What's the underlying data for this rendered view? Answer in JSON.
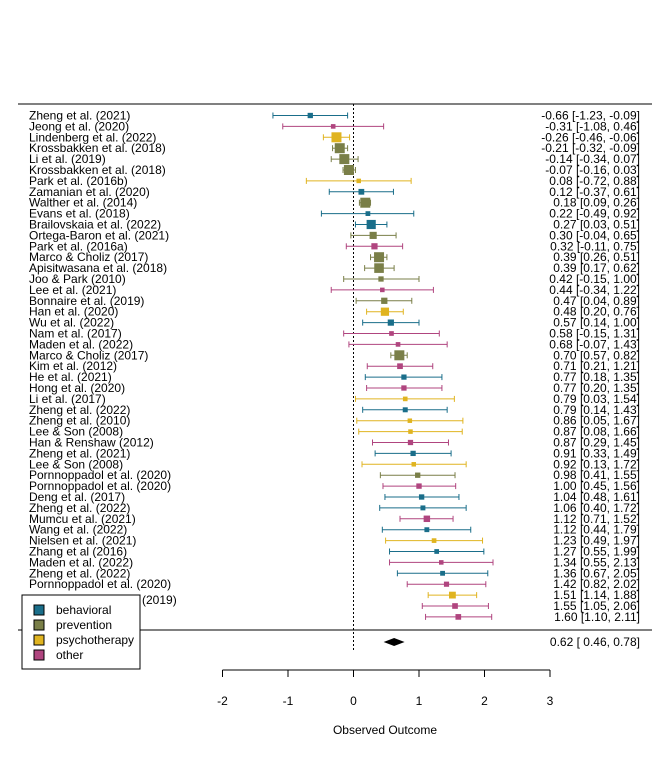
{
  "chart_data": {
    "type": "forest",
    "xlabel": "Observed Outcome",
    "xlim": [
      -2,
      3
    ],
    "xticks": [
      -2,
      -1,
      0,
      1,
      2,
      3
    ],
    "xtick_labels": [
      "-2",
      "-1",
      "0",
      "1",
      "2",
      "3"
    ],
    "reference_line": 0,
    "legend": {
      "placement": "bottom-left",
      "entries": [
        {
          "label": "behavioral",
          "color": "#1a6e8a"
        },
        {
          "label": "prevention",
          "color": "#7a7f48"
        },
        {
          "label": "psychotherapy",
          "color": "#e0b420"
        },
        {
          "label": "other",
          "color": "#b0457f"
        }
      ]
    },
    "studies": [
      {
        "label": "Zheng et al. (2021)",
        "est": -0.66,
        "lo": -1.23,
        "hi": -0.09,
        "text": "-0.66 [-1.23, -0.09]",
        "group": "behavioral"
      },
      {
        "label": "Jeong et al. (2020)",
        "est": -0.31,
        "lo": -1.08,
        "hi": 0.46,
        "text": "-0.31 [-1.08, 0.46]",
        "group": "other"
      },
      {
        "label": "Lindenberg et al. (2022)",
        "est": -0.26,
        "lo": -0.46,
        "hi": -0.06,
        "text": "-0.26 [-0.46, -0.06]",
        "group": "psychotherapy"
      },
      {
        "label": "Krossbakken et al. (2018)",
        "est": -0.21,
        "lo": -0.32,
        "hi": -0.09,
        "text": "-0.21 [-0.32, -0.09]",
        "group": "prevention"
      },
      {
        "label": "Li et al. (2019)",
        "est": -0.14,
        "lo": -0.34,
        "hi": 0.07,
        "text": "-0.14 [-0.34, 0.07]",
        "group": "prevention"
      },
      {
        "label": "Krossbakken et al. (2018)",
        "est": -0.07,
        "lo": -0.16,
        "hi": 0.03,
        "text": "-0.07 [-0.16, 0.03]",
        "group": "prevention"
      },
      {
        "label": "Park et al. (2016b)",
        "est": 0.08,
        "lo": -0.72,
        "hi": 0.88,
        "text": "0.08 [-0.72, 0.88]",
        "group": "psychotherapy"
      },
      {
        "label": "Zamanian et al. (2020)",
        "est": 0.12,
        "lo": -0.37,
        "hi": 0.61,
        "text": "0.12 [-0.37, 0.61]",
        "group": "behavioral"
      },
      {
        "label": "Walther et al. (2014)",
        "est": 0.18,
        "lo": 0.09,
        "hi": 0.26,
        "text": "0.18 [0.09, 0.26]",
        "group": "prevention"
      },
      {
        "label": "Evans et al. (2018)",
        "est": 0.22,
        "lo": -0.49,
        "hi": 0.92,
        "text": "0.22 [-0.49, 0.92]",
        "group": "behavioral"
      },
      {
        "label": "Brailovskaia et al. (2022)",
        "est": 0.27,
        "lo": 0.03,
        "hi": 0.51,
        "text": "0.27 [0.03, 0.51]",
        "group": "behavioral"
      },
      {
        "label": "Ortega-Baron et al. (2021)",
        "est": 0.3,
        "lo": -0.04,
        "hi": 0.65,
        "text": "0.30 [-0.04, 0.65]",
        "group": "prevention"
      },
      {
        "label": "Park et al. (2016a)",
        "est": 0.32,
        "lo": -0.11,
        "hi": 0.75,
        "text": "0.32 [-0.11, 0.75]",
        "group": "other"
      },
      {
        "label": "Marco & Choliz (2017)",
        "est": 0.39,
        "lo": 0.26,
        "hi": 0.51,
        "text": "0.39 [0.26, 0.51]",
        "group": "prevention"
      },
      {
        "label": "Apisitwasana et al. (2018)",
        "est": 0.39,
        "lo": 0.17,
        "hi": 0.62,
        "text": "0.39 [0.17, 0.62]",
        "group": "prevention"
      },
      {
        "label": "Joo & Park (2010)",
        "est": 0.42,
        "lo": -0.15,
        "hi": 1.0,
        "text": "0.42 [-0.15, 1.00]",
        "group": "prevention"
      },
      {
        "label": "Lee et al. (2021)",
        "est": 0.44,
        "lo": -0.34,
        "hi": 1.22,
        "text": "0.44 [-0.34, 1.22]",
        "group": "other"
      },
      {
        "label": "Bonnaire et al. (2019)",
        "est": 0.47,
        "lo": 0.04,
        "hi": 0.89,
        "text": "0.47 [0.04, 0.89]",
        "group": "prevention"
      },
      {
        "label": "Han et al. (2020)",
        "est": 0.48,
        "lo": 0.2,
        "hi": 0.76,
        "text": "0.48 [0.20, 0.76]",
        "group": "psychotherapy"
      },
      {
        "label": "Wu et al. (2022)",
        "est": 0.57,
        "lo": 0.14,
        "hi": 1.0,
        "text": "0.57 [0.14, 1.00]",
        "group": "behavioral"
      },
      {
        "label": "Nam et al. (2017)",
        "est": 0.58,
        "lo": -0.15,
        "hi": 1.31,
        "text": "0.58 [-0.15, 1.31]",
        "group": "other"
      },
      {
        "label": "Maden et al. (2022)",
        "est": 0.68,
        "lo": -0.07,
        "hi": 1.43,
        "text": "0.68 [-0.07, 1.43]",
        "group": "other"
      },
      {
        "label": "Marco & Choliz (2017)",
        "est": 0.7,
        "lo": 0.57,
        "hi": 0.82,
        "text": "0.70 [0.57, 0.82]",
        "group": "prevention"
      },
      {
        "label": "Kim et al. (2012)",
        "est": 0.71,
        "lo": 0.21,
        "hi": 1.21,
        "text": "0.71 [0.21, 1.21]",
        "group": "other"
      },
      {
        "label": "He et al. (2021)",
        "est": 0.77,
        "lo": 0.18,
        "hi": 1.35,
        "text": "0.77 [0.18, 1.35]",
        "group": "behavioral"
      },
      {
        "label": "Hong et al. (2020)",
        "est": 0.77,
        "lo": 0.2,
        "hi": 1.35,
        "text": "0.77 [0.20, 1.35]",
        "group": "other"
      },
      {
        "label": "Li et al. (2017)",
        "est": 0.79,
        "lo": 0.03,
        "hi": 1.54,
        "text": "0.79 [0.03, 1.54]",
        "group": "psychotherapy"
      },
      {
        "label": "Zheng et al. (2022)",
        "est": 0.79,
        "lo": 0.14,
        "hi": 1.43,
        "text": "0.79 [0.14, 1.43]",
        "group": "behavioral"
      },
      {
        "label": "Zheng et al. (2010)",
        "est": 0.86,
        "lo": 0.05,
        "hi": 1.67,
        "text": "0.86 [0.05, 1.67]",
        "group": "psychotherapy"
      },
      {
        "label": "Lee & Son (2008)",
        "est": 0.87,
        "lo": 0.08,
        "hi": 1.66,
        "text": "0.87 [0.08, 1.66]",
        "group": "psychotherapy"
      },
      {
        "label": "Han & Renshaw (2012)",
        "est": 0.87,
        "lo": 0.29,
        "hi": 1.45,
        "text": "0.87 [0.29, 1.45]",
        "group": "other"
      },
      {
        "label": "Zheng et al. (2021)",
        "est": 0.91,
        "lo": 0.33,
        "hi": 1.49,
        "text": "0.91 [0.33, 1.49]",
        "group": "behavioral"
      },
      {
        "label": "Lee & Son (2008)",
        "est": 0.92,
        "lo": 0.13,
        "hi": 1.72,
        "text": "0.92 [0.13, 1.72]",
        "group": "psychotherapy"
      },
      {
        "label": "Pornnoppadol et al. (2020)",
        "est": 0.98,
        "lo": 0.41,
        "hi": 1.55,
        "text": "0.98 [0.41, 1.55]",
        "group": "prevention"
      },
      {
        "label": "Pornnoppadol et al. (2020)",
        "est": 1.0,
        "lo": 0.45,
        "hi": 1.56,
        "text": "1.00 [0.45, 1.56]",
        "group": "other"
      },
      {
        "label": "Deng et al. (2017)",
        "est": 1.04,
        "lo": 0.48,
        "hi": 1.61,
        "text": "1.04 [0.48, 1.61]",
        "group": "behavioral"
      },
      {
        "label": "Zheng et al. (2022)",
        "est": 1.06,
        "lo": 0.4,
        "hi": 1.72,
        "text": "1.06 [0.40, 1.72]",
        "group": "behavioral"
      },
      {
        "label": "Mumcu et al. (2021)",
        "est": 1.12,
        "lo": 0.71,
        "hi": 1.52,
        "text": "1.12 [0.71, 1.52]",
        "group": "other"
      },
      {
        "label": "Wang et al. (2022)",
        "est": 1.12,
        "lo": 0.44,
        "hi": 1.79,
        "text": "1.12 [0.44, 1.79]",
        "group": "behavioral"
      },
      {
        "label": "Nielsen et al. (2021)",
        "est": 1.23,
        "lo": 0.49,
        "hi": 1.97,
        "text": "1.23 [0.49, 1.97]",
        "group": "psychotherapy"
      },
      {
        "label": "Zhang et al (2016)",
        "est": 1.27,
        "lo": 0.55,
        "hi": 1.99,
        "text": "1.27 [0.55, 1.99]",
        "group": "behavioral"
      },
      {
        "label": "Maden et al. (2022)",
        "est": 1.34,
        "lo": 0.55,
        "hi": 2.13,
        "text": "1.34 [0.55, 2.13]",
        "group": "other"
      },
      {
        "label": "Zheng et al. (2022)",
        "est": 1.36,
        "lo": 0.67,
        "hi": 2.05,
        "text": "1.36 [0.67, 2.05]",
        "group": "behavioral"
      },
      {
        "label": "Pornnoppadol et al. (2020)",
        "est": 1.42,
        "lo": 0.82,
        "hi": 2.02,
        "text": "1.42 [0.82, 2.02]",
        "group": "other"
      },
      {
        "label": "",
        "est": 1.51,
        "lo": 1.14,
        "hi": 1.88,
        "text": "1.51 [1.14, 1.88]",
        "group": "psychotherapy"
      },
      {
        "label": "",
        "est": 1.55,
        "lo": 1.05,
        "hi": 2.06,
        "text": "1.55 [1.05, 2.06]",
        "group": "other"
      },
      {
        "label": "",
        "est": 1.6,
        "lo": 1.1,
        "hi": 2.11,
        "text": "1.60 [1.10, 2.11]",
        "group": "other"
      }
    ],
    "summary": {
      "est": 0.62,
      "lo": 0.46,
      "hi": 0.78,
      "text": "0.62 [ 0.46, 0.78]"
    },
    "partial_label": "(2019)"
  }
}
